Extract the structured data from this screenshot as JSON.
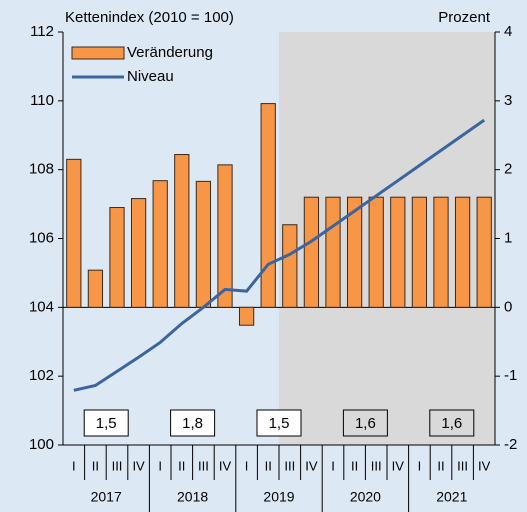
{
  "chart_data": {
    "type": "bar_line",
    "y_label": "Kettenindex (2010 = 100)",
    "y2_label": "Prozent",
    "categories": [
      "I",
      "II",
      "III",
      "IV",
      "I",
      "II",
      "III",
      "IV",
      "I",
      "II",
      "III",
      "IV",
      "I",
      "II",
      "III",
      "IV",
      "I",
      "II",
      "III",
      "IV"
    ],
    "years": [
      "2017",
      "2018",
      "2019",
      "2020",
      "2021"
    ],
    "annual_labels": [
      "1,5",
      "1,8",
      "1,5",
      "1,6",
      "1,6"
    ],
    "series": [
      {
        "name": "Veränderung",
        "type": "bar",
        "axis": "y2",
        "color": "#f79646",
        "values": [
          2.15,
          0.54,
          1.45,
          1.58,
          1.84,
          2.22,
          1.83,
          2.07,
          -0.26,
          2.96,
          1.2,
          1.6,
          1.6,
          1.6,
          1.6,
          1.6,
          1.6,
          1.6,
          1.6,
          1.6
        ]
      },
      {
        "name": "Niveau",
        "type": "line",
        "axis": "y",
        "color": "#3b64a0",
        "values": [
          101.59,
          101.73,
          102.14,
          102.55,
          102.98,
          103.53,
          104.0,
          104.52,
          104.47,
          105.25,
          105.54,
          105.92,
          106.36,
          106.8,
          107.24,
          107.68,
          108.12,
          108.56,
          109.0,
          109.44
        ]
      }
    ],
    "ylim": [
      100,
      112
    ],
    "yticks": [
      100,
      102,
      104,
      106,
      108,
      110,
      112
    ],
    "y2lim": [
      -2,
      4
    ],
    "y2ticks": [
      -2,
      -1,
      0,
      1,
      2,
      3,
      4
    ],
    "shaded_from": 10
  }
}
